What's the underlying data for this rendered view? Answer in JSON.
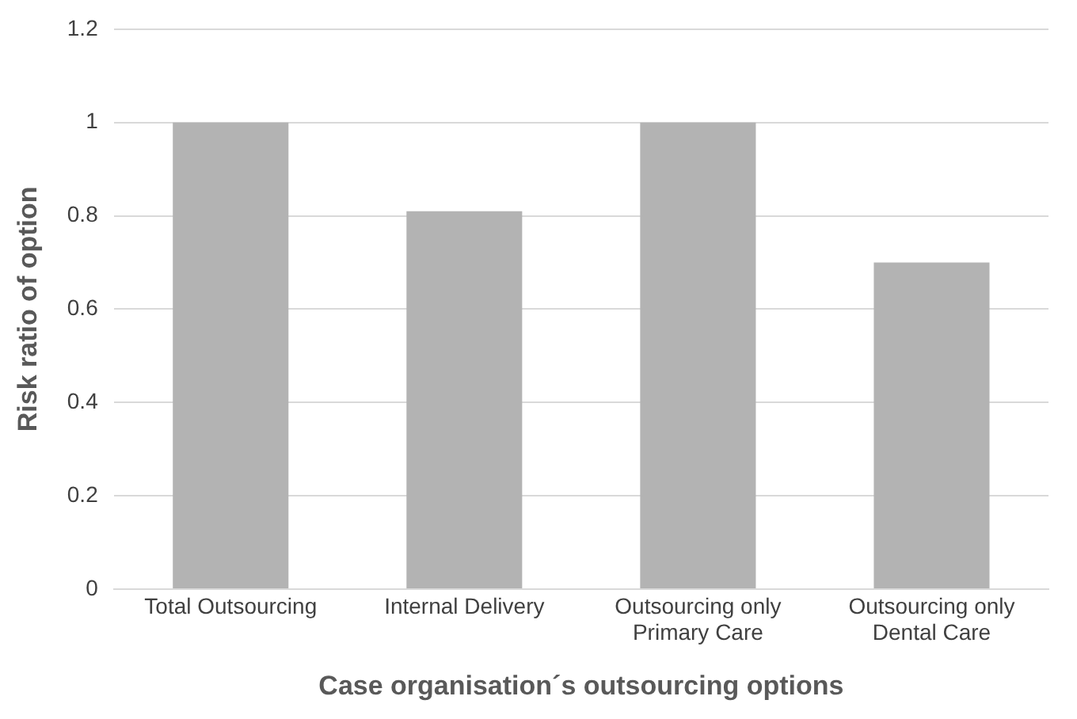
{
  "chart_data": {
    "type": "bar",
    "xlabel": "Case organisation´s outsourcing options",
    "ylabel": "Risk ratio of option",
    "categories": [
      "Total Outsourcing",
      "Internal Delivery",
      "Outsourcing only Primary Care",
      "Outsourcing only Dental Care"
    ],
    "values": [
      1,
      0.81,
      1,
      0.7
    ],
    "color": "#b3b3b3",
    "ylim": [
      0,
      1.2
    ],
    "yticks": [
      0,
      0.2,
      0.4,
      0.6,
      0.8,
      1,
      1.2
    ],
    "grid": "y",
    "legend": false
  }
}
